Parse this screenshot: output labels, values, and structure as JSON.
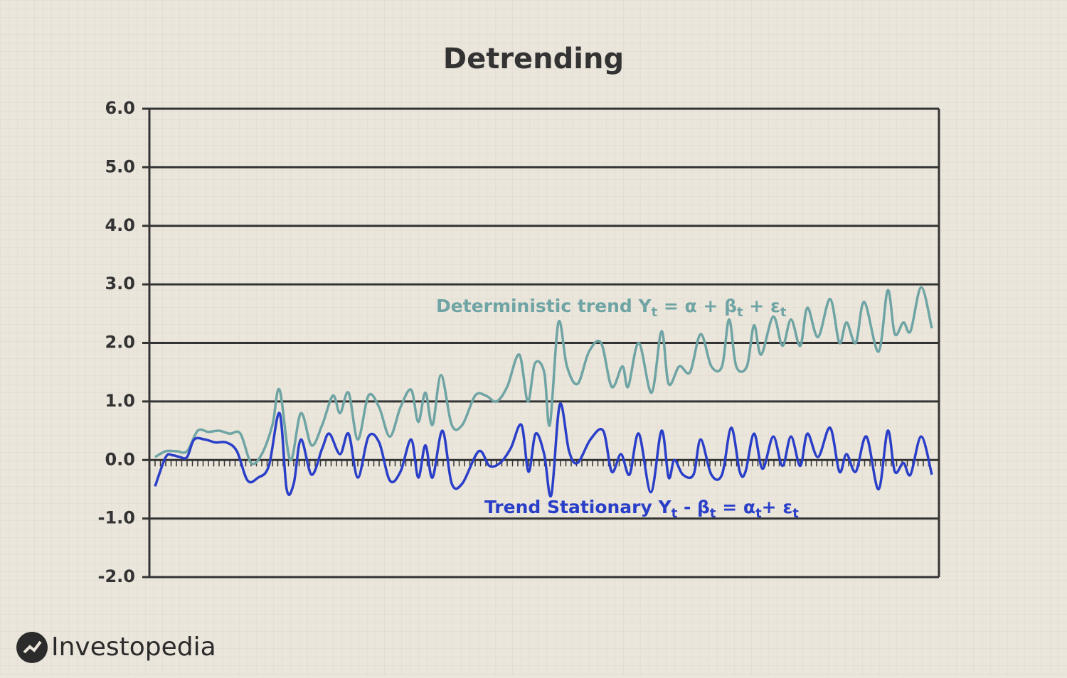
{
  "chart_data": {
    "type": "line",
    "title": "Detrending",
    "ylim": [
      -2,
      6
    ],
    "yticks": [
      {
        "value": -2,
        "label": "-2.0"
      },
      {
        "value": -1,
        "label": "-1.0"
      },
      {
        "value": 0,
        "label": "0.0"
      },
      {
        "value": 1,
        "label": "1.0"
      },
      {
        "value": 2,
        "label": "2.0"
      },
      {
        "value": 3,
        "label": "3.0"
      },
      {
        "value": 4,
        "label": "4.0"
      },
      {
        "value": 5,
        "label": "5.0"
      },
      {
        "value": 6,
        "label": "6.0"
      }
    ],
    "xlim": [
      0,
      1110
    ],
    "grid": true,
    "series": [
      {
        "name": "Deterministic trend",
        "color": "#6fa4a4",
        "x": [
          8,
          23,
          38,
          53,
          68,
          83,
          98,
          113,
          128,
          143,
          158,
          173,
          183,
          198,
          213,
          228,
          243,
          258,
          268,
          280,
          293,
          308,
          323,
          338,
          353,
          368,
          378,
          388,
          398,
          410,
          425,
          440,
          458,
          473,
          488,
          503,
          520,
          532,
          542,
          555,
          563,
          575,
          587,
          602,
          618,
          635,
          650,
          665,
          673,
          688,
          706,
          720,
          730,
          745,
          760,
          775,
          790,
          805,
          815,
          825,
          840,
          850,
          860,
          877,
          890,
          902,
          915,
          925,
          940,
          957,
          970,
          980,
          993,
          1005,
          1025,
          1038,
          1048,
          1060,
          1070,
          1085,
          1100
        ],
        "values": [
          0.05,
          0.15,
          0.15,
          0.15,
          0.5,
          0.48,
          0.5,
          0.45,
          0.45,
          -0.05,
          0.1,
          0.6,
          1.2,
          0.0,
          0.8,
          0.25,
          0.6,
          1.1,
          0.8,
          1.15,
          0.35,
          1.1,
          0.9,
          0.4,
          0.9,
          1.2,
          0.65,
          1.15,
          0.6,
          1.45,
          0.6,
          0.6,
          1.1,
          1.1,
          1.0,
          1.25,
          1.8,
          1.0,
          1.65,
          1.5,
          0.6,
          2.35,
          1.6,
          1.3,
          1.85,
          2.0,
          1.25,
          1.6,
          1.25,
          2.0,
          1.15,
          2.2,
          1.3,
          1.6,
          1.5,
          2.15,
          1.6,
          1.6,
          2.4,
          1.6,
          1.6,
          2.3,
          1.8,
          2.45,
          1.95,
          2.4,
          1.95,
          2.6,
          2.1,
          2.75,
          2.0,
          2.35,
          2.0,
          2.7,
          1.85,
          2.9,
          2.15,
          2.35,
          2.2,
          2.95,
          2.25
        ]
      },
      {
        "name": "Trend Stationary",
        "color": "#2a3fc8",
        "x": [
          8,
          23,
          33,
          43,
          53,
          63,
          78,
          93,
          108,
          123,
          138,
          153,
          168,
          183,
          193,
          203,
          213,
          228,
          243,
          253,
          268,
          280,
          293,
          308,
          323,
          338,
          353,
          368,
          378,
          388,
          398,
          412,
          425,
          440,
          463,
          478,
          493,
          508,
          523,
          533,
          543,
          555,
          565,
          577,
          590,
          602,
          620,
          638,
          650,
          663,
          675,
          688,
          705,
          720,
          730,
          738,
          750,
          765,
          775,
          790,
          805,
          818,
          830,
          838,
          850,
          862,
          877,
          890,
          902,
          915,
          925,
          940,
          957,
          970,
          980,
          993,
          1008,
          1025,
          1038,
          1048,
          1060,
          1070,
          1085,
          1100
        ],
        "values": [
          -0.45,
          0.05,
          0.08,
          0.05,
          0.05,
          0.35,
          0.35,
          0.3,
          0.3,
          0.15,
          -0.35,
          -0.3,
          -0.1,
          0.8,
          -0.5,
          -0.4,
          0.35,
          -0.25,
          0.2,
          0.45,
          0.1,
          0.45,
          -0.3,
          0.4,
          0.3,
          -0.35,
          -0.2,
          0.35,
          -0.3,
          0.25,
          -0.3,
          0.5,
          -0.4,
          -0.4,
          0.15,
          -0.1,
          -0.05,
          0.2,
          0.6,
          -0.2,
          0.45,
          0.1,
          -0.6,
          0.95,
          0.15,
          -0.05,
          0.35,
          0.5,
          -0.2,
          0.1,
          -0.25,
          0.45,
          -0.55,
          0.5,
          -0.3,
          0.0,
          -0.25,
          -0.25,
          0.35,
          -0.25,
          -0.25,
          0.55,
          -0.2,
          -0.2,
          0.45,
          -0.15,
          0.4,
          -0.1,
          0.4,
          -0.1,
          0.45,
          0.05,
          0.55,
          -0.2,
          0.1,
          -0.2,
          0.4,
          -0.5,
          0.5,
          -0.2,
          -0.05,
          -0.25,
          0.4,
          -0.25
        ]
      }
    ],
    "annotations": [
      {
        "color": "#6fa4a4",
        "parts": [
          {
            "text": "Deterministic trend Y"
          },
          {
            "text": "t",
            "sub": true
          },
          {
            "text": " = α + β"
          },
          {
            "text": "t",
            "sub": true
          },
          {
            "text": " + ε"
          },
          {
            "text": "t",
            "sub": true
          }
        ]
      },
      {
        "color": "#2a3fc8",
        "parts": [
          {
            "text": "Trend Stationary Y"
          },
          {
            "text": "t",
            "sub": true
          },
          {
            "text": " - β"
          },
          {
            "text": "t",
            "sub": true
          },
          {
            "text": " = α"
          },
          {
            "text": "t",
            "sub": true
          },
          {
            "text": "+ ε"
          },
          {
            "text": "t",
            "sub": true
          }
        ]
      }
    ]
  },
  "brand": "Investopedia"
}
